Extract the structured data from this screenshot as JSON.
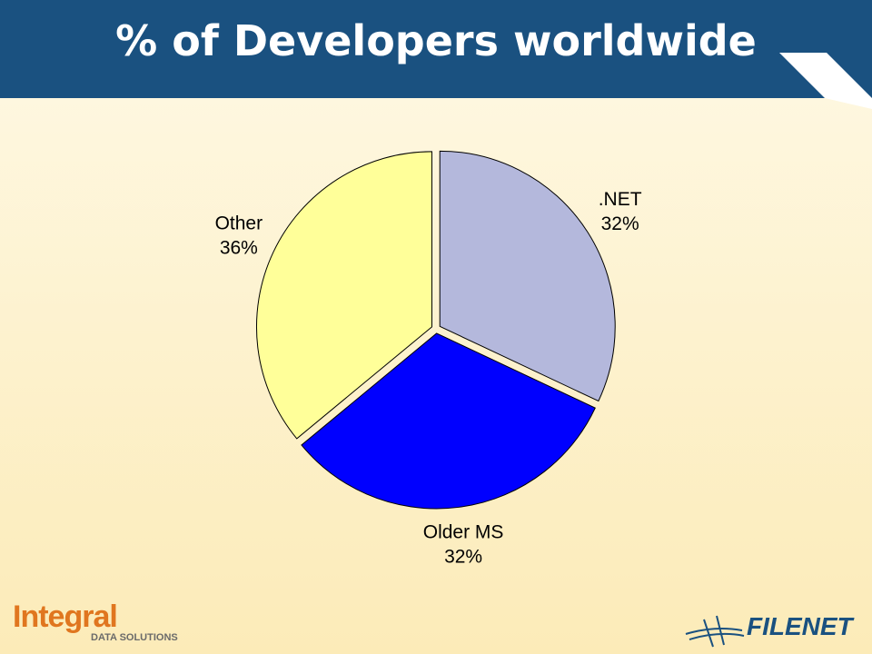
{
  "chart_data": {
    "type": "pie",
    "title": "% of Developers worldwide",
    "categories": [
      ".NET",
      "Older MS",
      "Other"
    ],
    "values": [
      32,
      32,
      36
    ],
    "value_labels": [
      "32%",
      "32%",
      "36%"
    ],
    "colors": [
      "#b4b8dc",
      "#0000ff",
      "#ffff99"
    ]
  },
  "logos": {
    "left": "Integral",
    "left_sub": "DATA SOLUTIONS",
    "right": "FILENET"
  }
}
